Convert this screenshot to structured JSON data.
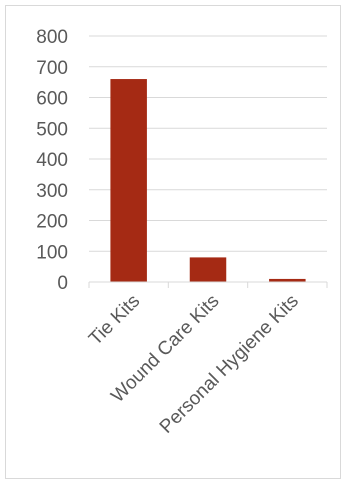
{
  "chart_data": {
    "type": "bar",
    "title": "",
    "xlabel": "",
    "ylabel": "",
    "categories": [
      "Tie Kits",
      "Wound Care Kits",
      "Personal Hygiene Kits"
    ],
    "values": [
      660,
      80,
      10
    ],
    "ylim": [
      0,
      800
    ],
    "yticks": [
      0,
      100,
      200,
      300,
      400,
      500,
      600,
      700,
      800
    ],
    "grid": true,
    "legend": "none",
    "bar_color": "#a52a14",
    "grid_color": "#d9d9d9",
    "text_color": "#595959"
  }
}
